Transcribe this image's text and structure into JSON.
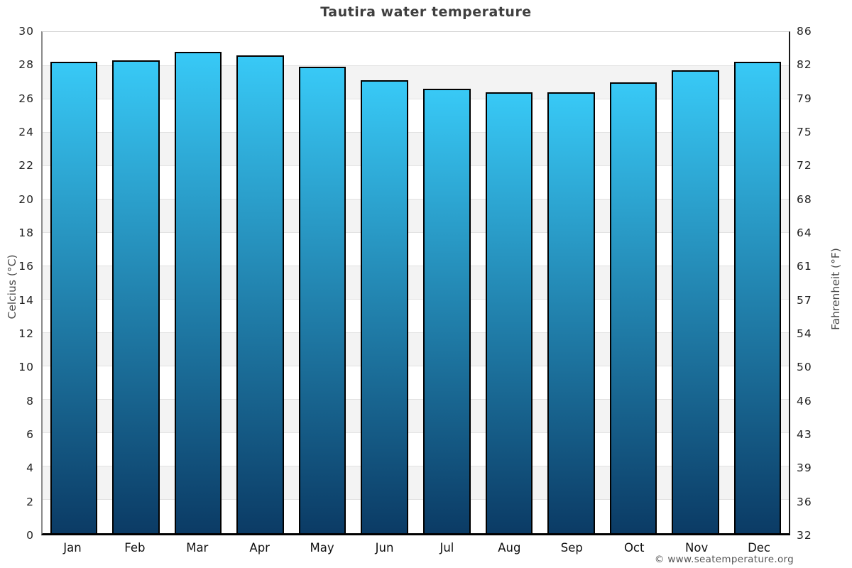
{
  "chart_data": {
    "type": "bar",
    "title": "Tautira water temperature",
    "categories": [
      "Jan",
      "Feb",
      "Mar",
      "Apr",
      "May",
      "Jun",
      "Jul",
      "Aug",
      "Sep",
      "Oct",
      "Nov",
      "Dec"
    ],
    "values": [
      28.2,
      28.3,
      28.8,
      28.6,
      27.9,
      27.1,
      26.6,
      26.4,
      26.4,
      27.0,
      27.7,
      28.2
    ],
    "unit": "°C",
    "ylabel_left": "Celcius (°C)",
    "ylabel_right": "Fahrenheit (°F)",
    "ylim": [
      0,
      30
    ],
    "ytick_step_celsius": 2,
    "yticks_celsius": [
      30,
      28,
      26,
      24,
      22,
      20,
      18,
      16,
      14,
      12,
      10,
      8,
      6,
      4,
      2,
      0
    ],
    "yticks_fahrenheit": [
      86,
      82,
      79,
      75,
      72,
      68,
      64,
      61,
      57,
      54,
      50,
      46,
      43,
      39,
      36,
      32
    ],
    "legend": "none",
    "grid": "alternating horizontal bands every 2°C",
    "colors": {
      "bar_gradient_top": "#38c9f6",
      "bar_gradient_bottom": "#0b3b65",
      "bar_border": "#010101",
      "band_gray": "#f3f3f3",
      "gridline": "#e2e2e2",
      "title": "#3f3f3f",
      "tick_labels": "#222222",
      "axis_bottom": "#000000",
      "axis_left": "#8a8a8a",
      "footer": "#555555"
    }
  },
  "footer": {
    "text": "© www.seatemperature.org"
  }
}
